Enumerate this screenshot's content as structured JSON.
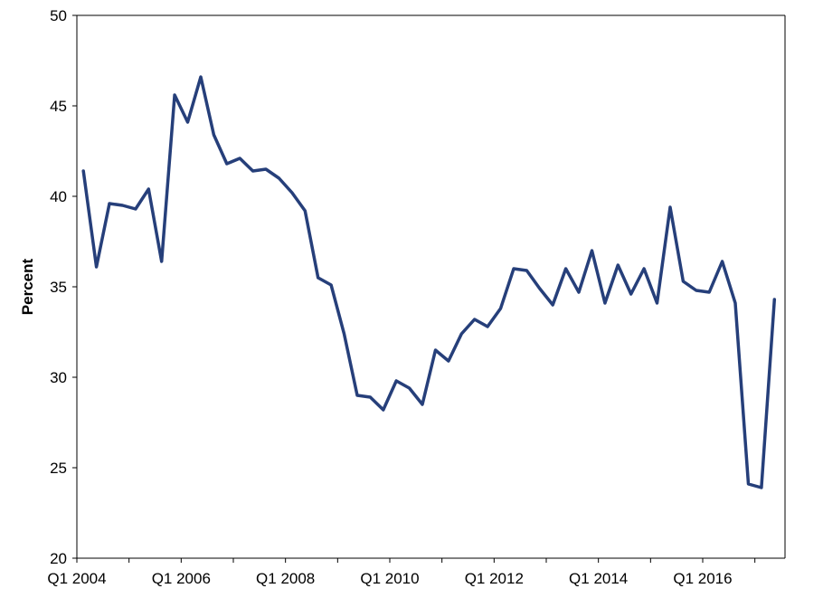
{
  "chart_data": {
    "type": "line",
    "title": "",
    "xlabel": "",
    "ylabel": "Percent",
    "ylim": [
      20,
      50
    ],
    "yticks": [
      20,
      25,
      30,
      35,
      40,
      45,
      50
    ],
    "xtick_labels": [
      "Q1 2004",
      "Q1 2006",
      "Q1 2008",
      "Q1 2010",
      "Q1 2012",
      "Q1 2014",
      "Q1 2016"
    ],
    "x_start": "Q1 2004",
    "grid": false,
    "legend": "none",
    "line_color": "#263F7A",
    "series": [
      {
        "values": [
          41.4,
          36.1,
          39.6,
          39.5,
          39.3,
          40.4,
          36.4,
          45.6,
          44.1,
          46.6,
          43.4,
          41.8,
          42.1,
          41.4,
          41.5,
          41.0,
          40.2,
          39.2,
          35.5,
          35.1,
          32.4,
          29.0,
          28.9,
          28.2,
          29.8,
          29.4,
          28.5,
          31.5,
          30.9,
          32.4,
          33.2,
          32.8,
          33.8,
          36.0,
          35.9,
          34.9,
          34.0,
          36.0,
          34.7,
          37.0,
          34.1,
          36.2,
          34.6,
          36.0,
          34.1,
          39.4,
          35.3,
          34.8,
          34.7,
          36.4,
          34.1,
          24.1,
          23.9,
          34.3
        ]
      }
    ]
  }
}
